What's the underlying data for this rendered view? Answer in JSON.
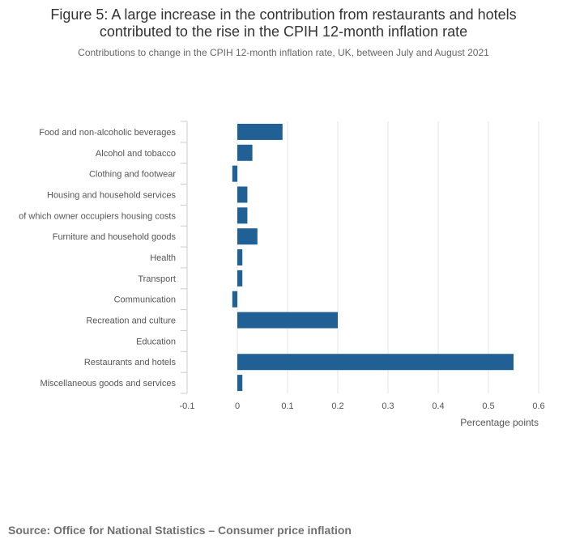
{
  "chart_data": {
    "type": "bar",
    "orientation": "horizontal",
    "title": "Figure 5: A large increase in the contribution from restaurants and hotels contributed to the rise in the CPIH 12-month inflation rate",
    "title_lines": [
      "Figure 5: A large increase in the contribution from restaurants and hotels",
      "contributed to the rise in the CPIH 12-month inflation rate"
    ],
    "subtitle": "Contributions to change in the CPIH 12-month inflation rate, UK, between July and August 2021",
    "categories": [
      "Food and non-alcoholic beverages",
      "Alcohol and tobacco",
      "Clothing and footwear",
      "Housing and household services",
      "of which owner occupiers housing costs",
      "Furniture and household goods",
      "Health",
      "Transport",
      "Communication",
      "Recreation and culture",
      "Education",
      "Restaurants and hotels",
      "Miscellaneous goods and services"
    ],
    "values": [
      0.09,
      0.03,
      -0.01,
      0.02,
      0.02,
      0.04,
      0.01,
      0.01,
      -0.01,
      0.2,
      0,
      0.55,
      0.01
    ],
    "xlabel": "Percentage points",
    "ylabel": "",
    "xlim": [
      -0.1,
      0.6
    ],
    "xticks": [
      -0.1,
      0,
      0.1,
      0.2,
      0.3,
      0.4,
      0.5,
      0.6
    ],
    "xtick_labels": [
      "-0.1",
      "0",
      "0.1",
      "0.2",
      "0.3",
      "0.4",
      "0.5",
      "0.6"
    ],
    "grid": true,
    "bar_color": "#206095",
    "grid_color": "#e6e6e6"
  },
  "source": "Source: Office for National Statistics – Consumer price inflation"
}
